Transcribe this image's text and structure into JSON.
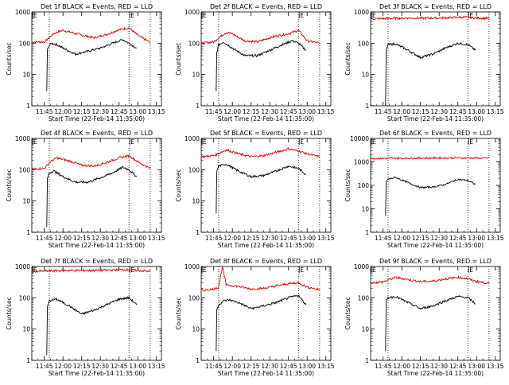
{
  "colors": {
    "events": "#000000",
    "lld": "#e00000",
    "axis": "#000000",
    "background": "#ffffff"
  },
  "chart_data": [
    {
      "type": "line",
      "title": "Det 1f BLACK = Events, RED = LLD",
      "xlabel": "Start Time (22-Feb-14 11:35:00)",
      "ylabel": "Counts/sec",
      "y_scale": "log",
      "ylim": [
        1,
        1000
      ],
      "xlim": [
        "11:35",
        "13:19"
      ],
      "xtick_labels": [
        "11:45",
        "12:00",
        "12:15",
        "12:30",
        "12:45",
        "13:00",
        "13:15"
      ],
      "ytick_labels": [
        "1",
        "10",
        "100",
        "1000"
      ],
      "markers": [
        {
          "time": "11:35",
          "label": "E"
        },
        {
          "time": "12:53",
          "label": "E"
        }
      ],
      "vlines": [
        "11:49",
        "12:53",
        "13:10"
      ],
      "series": [
        {
          "name": "LLD",
          "x": [
            "11:35",
            "11:45",
            "11:49",
            "11:53",
            "12:00",
            "12:07",
            "12:15",
            "12:25",
            "12:35",
            "12:45",
            "12:53",
            "13:00",
            "13:10"
          ],
          "y": [
            110,
            110,
            150,
            210,
            260,
            220,
            180,
            150,
            190,
            270,
            310,
            180,
            105
          ]
        },
        {
          "name": "Events",
          "x": [
            "11:47",
            "11:47.5",
            "11:48.5",
            "11:51",
            "11:55",
            "12:00",
            "12:10",
            "12:20",
            "12:30",
            "12:40",
            "12:48",
            "12:53",
            "12:59"
          ],
          "y": [
            3,
            60,
            80,
            100,
            90,
            70,
            45,
            55,
            70,
            100,
            130,
            100,
            70
          ]
        }
      ]
    },
    {
      "type": "line",
      "title": "Det 2f BLACK = Events, RED = LLD",
      "xlabel": "Start Time (22-Feb-14 11:35:00)",
      "ylabel": "Counts/sec",
      "y_scale": "log",
      "ylim": [
        1,
        1000
      ],
      "xlim": [
        "11:35",
        "13:19"
      ],
      "xtick_labels": [
        "11:45",
        "12:00",
        "12:15",
        "12:30",
        "12:45",
        "13:00",
        "13:15"
      ],
      "ytick_labels": [
        "1",
        "10",
        "100",
        "1000"
      ],
      "markers": [
        {
          "time": "11:35",
          "label": "E"
        },
        {
          "time": "12:53",
          "label": "E"
        }
      ],
      "vlines": [
        "11:49",
        "12:53",
        "13:10"
      ],
      "series": [
        {
          "name": "LLD",
          "x": [
            "11:35",
            "11:45",
            "11:49",
            "11:55",
            "12:00",
            "12:10",
            "12:20",
            "12:28",
            "12:35",
            "12:45",
            "12:53",
            "13:00",
            "13:10"
          ],
          "y": [
            100,
            110,
            150,
            220,
            200,
            120,
            110,
            140,
            170,
            200,
            260,
            120,
            100
          ]
        },
        {
          "name": "Events",
          "x": [
            "11:47",
            "11:47.5",
            "11:49",
            "11:53",
            "12:00",
            "12:10",
            "12:20",
            "12:30",
            "12:40",
            "12:48",
            "12:53",
            "12:59"
          ],
          "y": [
            3,
            50,
            90,
            110,
            70,
            40,
            40,
            60,
            90,
            120,
            100,
            60
          ]
        }
      ]
    },
    {
      "type": "line",
      "title": "Det 3f BLACK = Events, RED = LLD",
      "xlabel": "Start Time (22-Feb-14 11:35:00)",
      "ylabel": "Counts/sec",
      "y_scale": "log",
      "ylim": [
        1,
        1000
      ],
      "xlim": [
        "11:35",
        "13:19"
      ],
      "xtick_labels": [
        "11:45",
        "12:00",
        "12:15",
        "12:30",
        "12:45",
        "13:00",
        "13:15"
      ],
      "ytick_labels": [
        "1",
        "10",
        "100",
        "1000"
      ],
      "markers": [
        {
          "time": "11:35",
          "label": "E"
        },
        {
          "time": "12:53",
          "label": "E"
        }
      ],
      "vlines": [
        "11:49",
        "12:53",
        "13:10"
      ],
      "series": [
        {
          "name": "LLD",
          "x": [
            "11:35",
            "11:50",
            "12:05",
            "12:20",
            "12:35",
            "12:50",
            "13:00",
            "13:10"
          ],
          "y": [
            600,
            620,
            640,
            630,
            650,
            680,
            640,
            620
          ]
        },
        {
          "name": "Events",
          "x": [
            "11:47",
            "11:47.5",
            "11:49",
            "11:55",
            "12:05",
            "12:15",
            "12:25",
            "12:35",
            "12:45",
            "12:53",
            "12:59"
          ],
          "y": [
            1,
            60,
            90,
            95,
            60,
            35,
            45,
            70,
            100,
            90,
            60
          ]
        }
      ]
    },
    {
      "type": "line",
      "title": "Det 4f BLACK = Events, RED = LLD",
      "xlabel": "Start Time (22-Feb-14 11:35:00)",
      "ylabel": "Counts/sec",
      "y_scale": "log",
      "ylim": [
        1,
        1000
      ],
      "xlim": [
        "11:35",
        "13:19"
      ],
      "xtick_labels": [
        "11:45",
        "12:00",
        "12:15",
        "12:30",
        "12:45",
        "13:00",
        "13:15"
      ],
      "ytick_labels": [
        "1",
        "10",
        "100",
        "1000"
      ],
      "markers": [
        {
          "time": "11:35",
          "label": "E"
        },
        {
          "time": "12:53",
          "label": "E"
        }
      ],
      "vlines": [
        "11:49",
        "12:53",
        "13:10"
      ],
      "series": [
        {
          "name": "LLD",
          "x": [
            "11:35",
            "11:45",
            "11:50",
            "11:55",
            "12:05",
            "12:15",
            "12:25",
            "12:35",
            "12:45",
            "12:53",
            "13:00",
            "13:10"
          ],
          "y": [
            105,
            110,
            180,
            240,
            190,
            140,
            130,
            170,
            240,
            280,
            180,
            110
          ]
        },
        {
          "name": "Events",
          "x": [
            "11:47",
            "11:47.5",
            "11:49",
            "11:53",
            "12:00",
            "12:10",
            "12:20",
            "12:30",
            "12:40",
            "12:48",
            "12:53",
            "12:59"
          ],
          "y": [
            1.5,
            50,
            80,
            90,
            60,
            40,
            40,
            55,
            80,
            120,
            100,
            60
          ]
        }
      ]
    },
    {
      "type": "line",
      "title": "Det 5f BLACK = Events, RED = LLD",
      "xlabel": "Start Time (22-Feb-14 11:35:00)",
      "ylabel": "Counts/sec",
      "y_scale": "log",
      "ylim": [
        1,
        1000
      ],
      "xlim": [
        "11:35",
        "13:19"
      ],
      "xtick_labels": [
        "11:45",
        "12:00",
        "12:15",
        "12:30",
        "12:45",
        "13:00",
        "13:15"
      ],
      "ytick_labels": [
        "1",
        "10",
        "100",
        "1000"
      ],
      "markers": [
        {
          "time": "11:35",
          "label": "E"
        },
        {
          "time": "12:53",
          "label": "E"
        }
      ],
      "vlines": [
        "11:49",
        "12:53",
        "13:10"
      ],
      "series": [
        {
          "name": "LLD",
          "x": [
            "11:35",
            "11:45",
            "11:55",
            "12:05",
            "12:15",
            "12:25",
            "12:35",
            "12:45",
            "12:53",
            "13:00",
            "13:10"
          ],
          "y": [
            260,
            280,
            430,
            320,
            260,
            280,
            360,
            460,
            400,
            320,
            260
          ]
        },
        {
          "name": "Events",
          "x": [
            "11:47",
            "11:47.5",
            "11:49",
            "11:55",
            "12:05",
            "12:15",
            "12:25",
            "12:35",
            "12:45",
            "12:53",
            "12:59"
          ],
          "y": [
            4,
            90,
            130,
            150,
            90,
            60,
            65,
            90,
            130,
            110,
            70
          ]
        }
      ]
    },
    {
      "type": "line",
      "title": "Det 6f BLACK = Events, RED = LLD",
      "xlabel": "Start Time (22-Feb-14 11:35:00)",
      "ylabel": "Counts/sec",
      "y_scale": "log",
      "ylim": [
        1,
        10000
      ],
      "xlim": [
        "11:35",
        "13:19"
      ],
      "xtick_labels": [
        "11:45",
        "12:00",
        "12:15",
        "12:30",
        "12:45",
        "13:00",
        "13:15"
      ],
      "ytick_labels": [
        "1",
        "10",
        "100",
        "1000",
        "10000"
      ],
      "markers": [
        {
          "time": "11:35",
          "label": "E"
        },
        {
          "time": "12:53",
          "label": "E"
        }
      ],
      "vlines": [
        "11:49",
        "12:53",
        "13:10"
      ],
      "series": [
        {
          "name": "LLD",
          "x": [
            "11:35",
            "11:55",
            "12:15",
            "12:35",
            "12:55",
            "13:10"
          ],
          "y": [
            1400,
            1420,
            1450,
            1470,
            1460,
            1440
          ]
        },
        {
          "name": "Events",
          "x": [
            "11:47",
            "11:47.5",
            "11:49",
            "11:55",
            "12:05",
            "12:15",
            "12:25",
            "12:35",
            "12:45",
            "12:53",
            "12:59"
          ],
          "y": [
            5,
            150,
            180,
            220,
            130,
            80,
            85,
            110,
            180,
            160,
            110
          ]
        }
      ]
    },
    {
      "type": "line",
      "title": "Det 7f BLACK = Events, RED = LLD",
      "xlabel": "Start Time (22-Feb-14 11:35:00)",
      "ylabel": "Counts/sec",
      "y_scale": "log",
      "ylim": [
        1,
        1000
      ],
      "xlim": [
        "11:35",
        "13:19"
      ],
      "xtick_labels": [
        "11:45",
        "12:00",
        "12:15",
        "12:30",
        "12:45",
        "13:00",
        "13:15"
      ],
      "ytick_labels": [
        "1",
        "10",
        "100",
        "1000"
      ],
      "markers": [
        {
          "time": "11:35",
          "label": "E"
        },
        {
          "time": "12:53",
          "label": "E"
        }
      ],
      "vlines": [
        "11:49",
        "12:53",
        "13:10"
      ],
      "series": [
        {
          "name": "LLD",
          "x": [
            "11:35",
            "11:50",
            "12:05",
            "12:20",
            "12:35",
            "12:50",
            "13:00",
            "13:10"
          ],
          "y": [
            700,
            720,
            750,
            740,
            760,
            790,
            740,
            700
          ]
        },
        {
          "name": "Events",
          "x": [
            "11:47",
            "11:47.5",
            "11:49",
            "11:55",
            "12:05",
            "12:15",
            "12:25",
            "12:35",
            "12:45",
            "12:53",
            "12:59"
          ],
          "y": [
            1.5,
            50,
            80,
            90,
            55,
            30,
            40,
            60,
            90,
            100,
            60
          ]
        }
      ]
    },
    {
      "type": "line",
      "title": "Det 8f BLACK = Events, RED = LLD",
      "xlabel": "Start Time (22-Feb-14 11:35:00)",
      "ylabel": "Counts/sec",
      "y_scale": "log",
      "ylim": [
        1,
        1000
      ],
      "xlim": [
        "11:35",
        "13:19"
      ],
      "xtick_labels": [
        "11:45",
        "12:00",
        "12:15",
        "12:30",
        "12:45",
        "13:00",
        "13:15"
      ],
      "ytick_labels": [
        "1",
        "10",
        "100",
        "1000"
      ],
      "markers": [
        {
          "time": "11:35",
          "label": "E"
        },
        {
          "time": "12:53",
          "label": "E"
        }
      ],
      "vlines": [
        "11:49",
        "12:53",
        "13:10"
      ],
      "series": [
        {
          "name": "LLD",
          "x": [
            "11:35",
            "11:45",
            "11:49",
            "11:52",
            "11:55",
            "12:05",
            "12:15",
            "12:25",
            "12:35",
            "12:45",
            "12:53",
            "13:00",
            "13:10"
          ],
          "y": [
            170,
            190,
            220,
            1000,
            260,
            230,
            190,
            200,
            240,
            280,
            300,
            220,
            180
          ]
        },
        {
          "name": "Events",
          "x": [
            "11:47",
            "11:47.5",
            "11:49",
            "11:53",
            "11:58",
            "12:05",
            "12:15",
            "12:25",
            "12:35",
            "12:45",
            "12:53",
            "12:59"
          ],
          "y": [
            2,
            40,
            60,
            80,
            85,
            70,
            45,
            55,
            70,
            100,
            120,
            60
          ]
        }
      ]
    },
    {
      "type": "line",
      "title": "Det 9f BLACK = Events, RED = LLD",
      "xlabel": "Start Time (22-Feb-14 11:35:00)",
      "ylabel": "Counts/sec",
      "y_scale": "log",
      "ylim": [
        1,
        1000
      ],
      "xlim": [
        "11:35",
        "13:19"
      ],
      "xtick_labels": [
        "11:45",
        "12:00",
        "12:15",
        "12:30",
        "12:45",
        "13:00",
        "13:15"
      ],
      "ytick_labels": [
        "1",
        "10",
        "100",
        "1000"
      ],
      "markers": [
        {
          "time": "11:35",
          "label": "E"
        },
        {
          "time": "12:53",
          "label": "E"
        }
      ],
      "vlines": [
        "11:49",
        "12:53",
        "13:10"
      ],
      "series": [
        {
          "name": "LLD",
          "x": [
            "11:35",
            "11:45",
            "11:55",
            "12:05",
            "12:15",
            "12:25",
            "12:35",
            "12:45",
            "12:53",
            "13:00",
            "13:10"
          ],
          "y": [
            300,
            320,
            450,
            380,
            330,
            340,
            400,
            450,
            400,
            330,
            290
          ]
        },
        {
          "name": "Events",
          "x": [
            "11:47",
            "11:47.5",
            "11:49",
            "11:55",
            "12:05",
            "12:15",
            "12:25",
            "12:35",
            "12:45",
            "12:53",
            "12:59"
          ],
          "y": [
            2,
            80,
            100,
            110,
            70,
            45,
            55,
            80,
            110,
            100,
            65
          ]
        }
      ]
    }
  ]
}
